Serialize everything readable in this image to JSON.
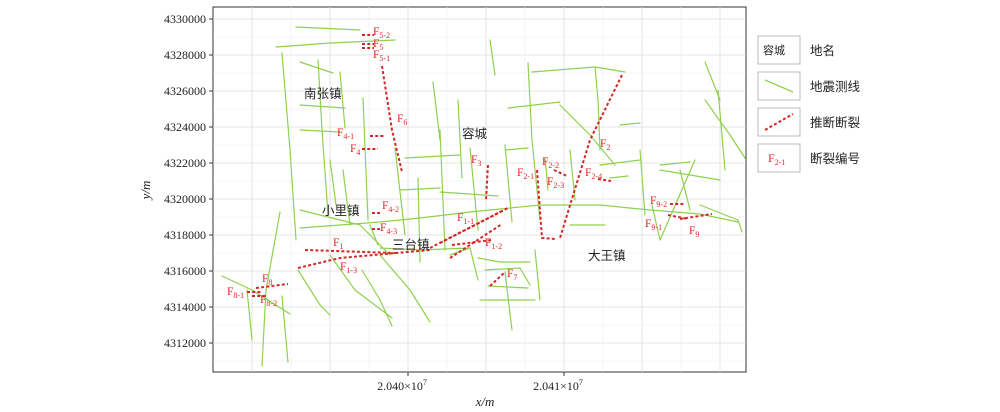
{
  "axes": {
    "x_label": "x/m",
    "y_label": "y/m",
    "x_ticks": [
      {
        "label": "2.040×10",
        "exp": "7",
        "value": 20400000
      },
      {
        "label": "2.041×10",
        "exp": "7",
        "value": 20410000
      }
    ],
    "y_ticks": [
      "4312000",
      "4314000",
      "4316000",
      "4318000",
      "4320000",
      "4322000",
      "4324000",
      "4326000",
      "4328000",
      "4330000"
    ],
    "x_range": [
      20389500,
      20419200
    ],
    "y_range": [
      4310600,
      4330600
    ],
    "grid": true
  },
  "places": [
    {
      "name": "南张镇"
    },
    {
      "name": "容城"
    },
    {
      "name": "小里镇"
    },
    {
      "name": "三台镇"
    },
    {
      "name": "大王镇"
    }
  ],
  "faults": [
    {
      "base": "F",
      "sub": "5-2"
    },
    {
      "base": "F",
      "sub": "5"
    },
    {
      "base": "F",
      "sub": "5-1"
    },
    {
      "base": "F",
      "sub": "6"
    },
    {
      "base": "F",
      "sub": "4-1"
    },
    {
      "base": "F",
      "sub": "4"
    },
    {
      "base": "F",
      "sub": "3"
    },
    {
      "base": "F",
      "sub": "2"
    },
    {
      "base": "F",
      "sub": "2-2"
    },
    {
      "base": "F",
      "sub": "2-1"
    },
    {
      "base": "F",
      "sub": "2-4"
    },
    {
      "base": "F",
      "sub": "2-3"
    },
    {
      "base": "F",
      "sub": "4-2"
    },
    {
      "base": "F",
      "sub": "4-3"
    },
    {
      "base": "F",
      "sub": "1-1"
    },
    {
      "base": "F",
      "sub": "1"
    },
    {
      "base": "F",
      "sub": "1-2"
    },
    {
      "base": "F",
      "sub": "1-3"
    },
    {
      "base": "F",
      "sub": "9-2"
    },
    {
      "base": "F",
      "sub": "9-1"
    },
    {
      "base": "F",
      "sub": "9"
    },
    {
      "base": "F",
      "sub": "7"
    },
    {
      "base": "F",
      "sub": "8"
    },
    {
      "base": "F",
      "sub": "8-1"
    },
    {
      "base": "F",
      "sub": "8-2"
    }
  ],
  "legend": {
    "items": [
      {
        "key": "容城",
        "label": "地名"
      },
      {
        "key": "",
        "label": "地震测线"
      },
      {
        "key": "",
        "label": "推断断裂"
      },
      {
        "key": "F",
        "key_sub": "2-1",
        "label": "断裂编号"
      }
    ]
  },
  "colors": {
    "seismic_line": "#8fd14f",
    "fault": "#d62728",
    "fault_label": "#e0262a",
    "grid": "#dcdcdc",
    "panel_border": "#333333"
  }
}
